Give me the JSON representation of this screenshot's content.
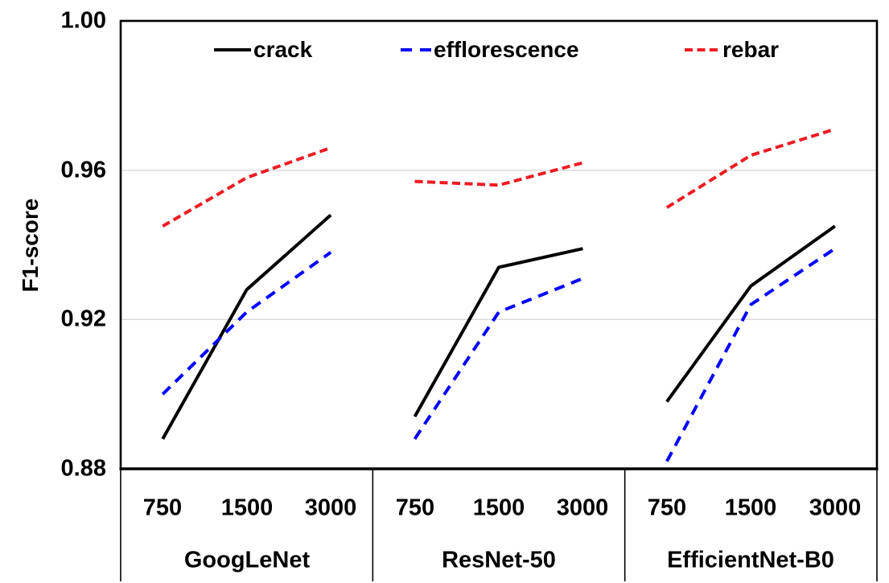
{
  "chart_data": {
    "type": "line",
    "title": "",
    "ylabel": "F1-score",
    "xlabel": "",
    "ylim": [
      0.88,
      1.0
    ],
    "yticks": [
      {
        "label": "1.00",
        "value": 1.0
      },
      {
        "label": "0.96",
        "value": 0.96
      },
      {
        "label": "0.92",
        "value": 0.92
      },
      {
        "label": "0.88",
        "value": 0.88
      }
    ],
    "gridline_values": [
      0.96,
      0.92
    ],
    "grid": "horizontal-light",
    "legend_position": "top-inside",
    "categories": [
      "750",
      "1500",
      "3000"
    ],
    "groups": [
      "GoogLeNet",
      "ResNet-50",
      "EfficientNet-B0"
    ],
    "series": [
      {
        "name": "crack",
        "color": "#000000",
        "dash": "solid",
        "values": [
          [
            0.888,
            0.928,
            0.948
          ],
          [
            0.894,
            0.934,
            0.939
          ],
          [
            0.898,
            0.929,
            0.945
          ]
        ]
      },
      {
        "name": "efflorescence",
        "color": "#0000ff",
        "dash": "long-dash",
        "values": [
          [
            0.9,
            0.922,
            0.938
          ],
          [
            0.888,
            0.922,
            0.931
          ],
          [
            0.882,
            0.924,
            0.939
          ]
        ]
      },
      {
        "name": "rebar",
        "color": "#ed1c24",
        "dash": "short-dash",
        "values": [
          [
            0.945,
            0.958,
            0.966
          ],
          [
            0.957,
            0.956,
            0.962
          ],
          [
            0.95,
            0.964,
            0.971
          ]
        ]
      }
    ],
    "colors": {
      "gridline": "#d9d9d9",
      "axis": "#000000",
      "background": "#ffffff"
    }
  }
}
